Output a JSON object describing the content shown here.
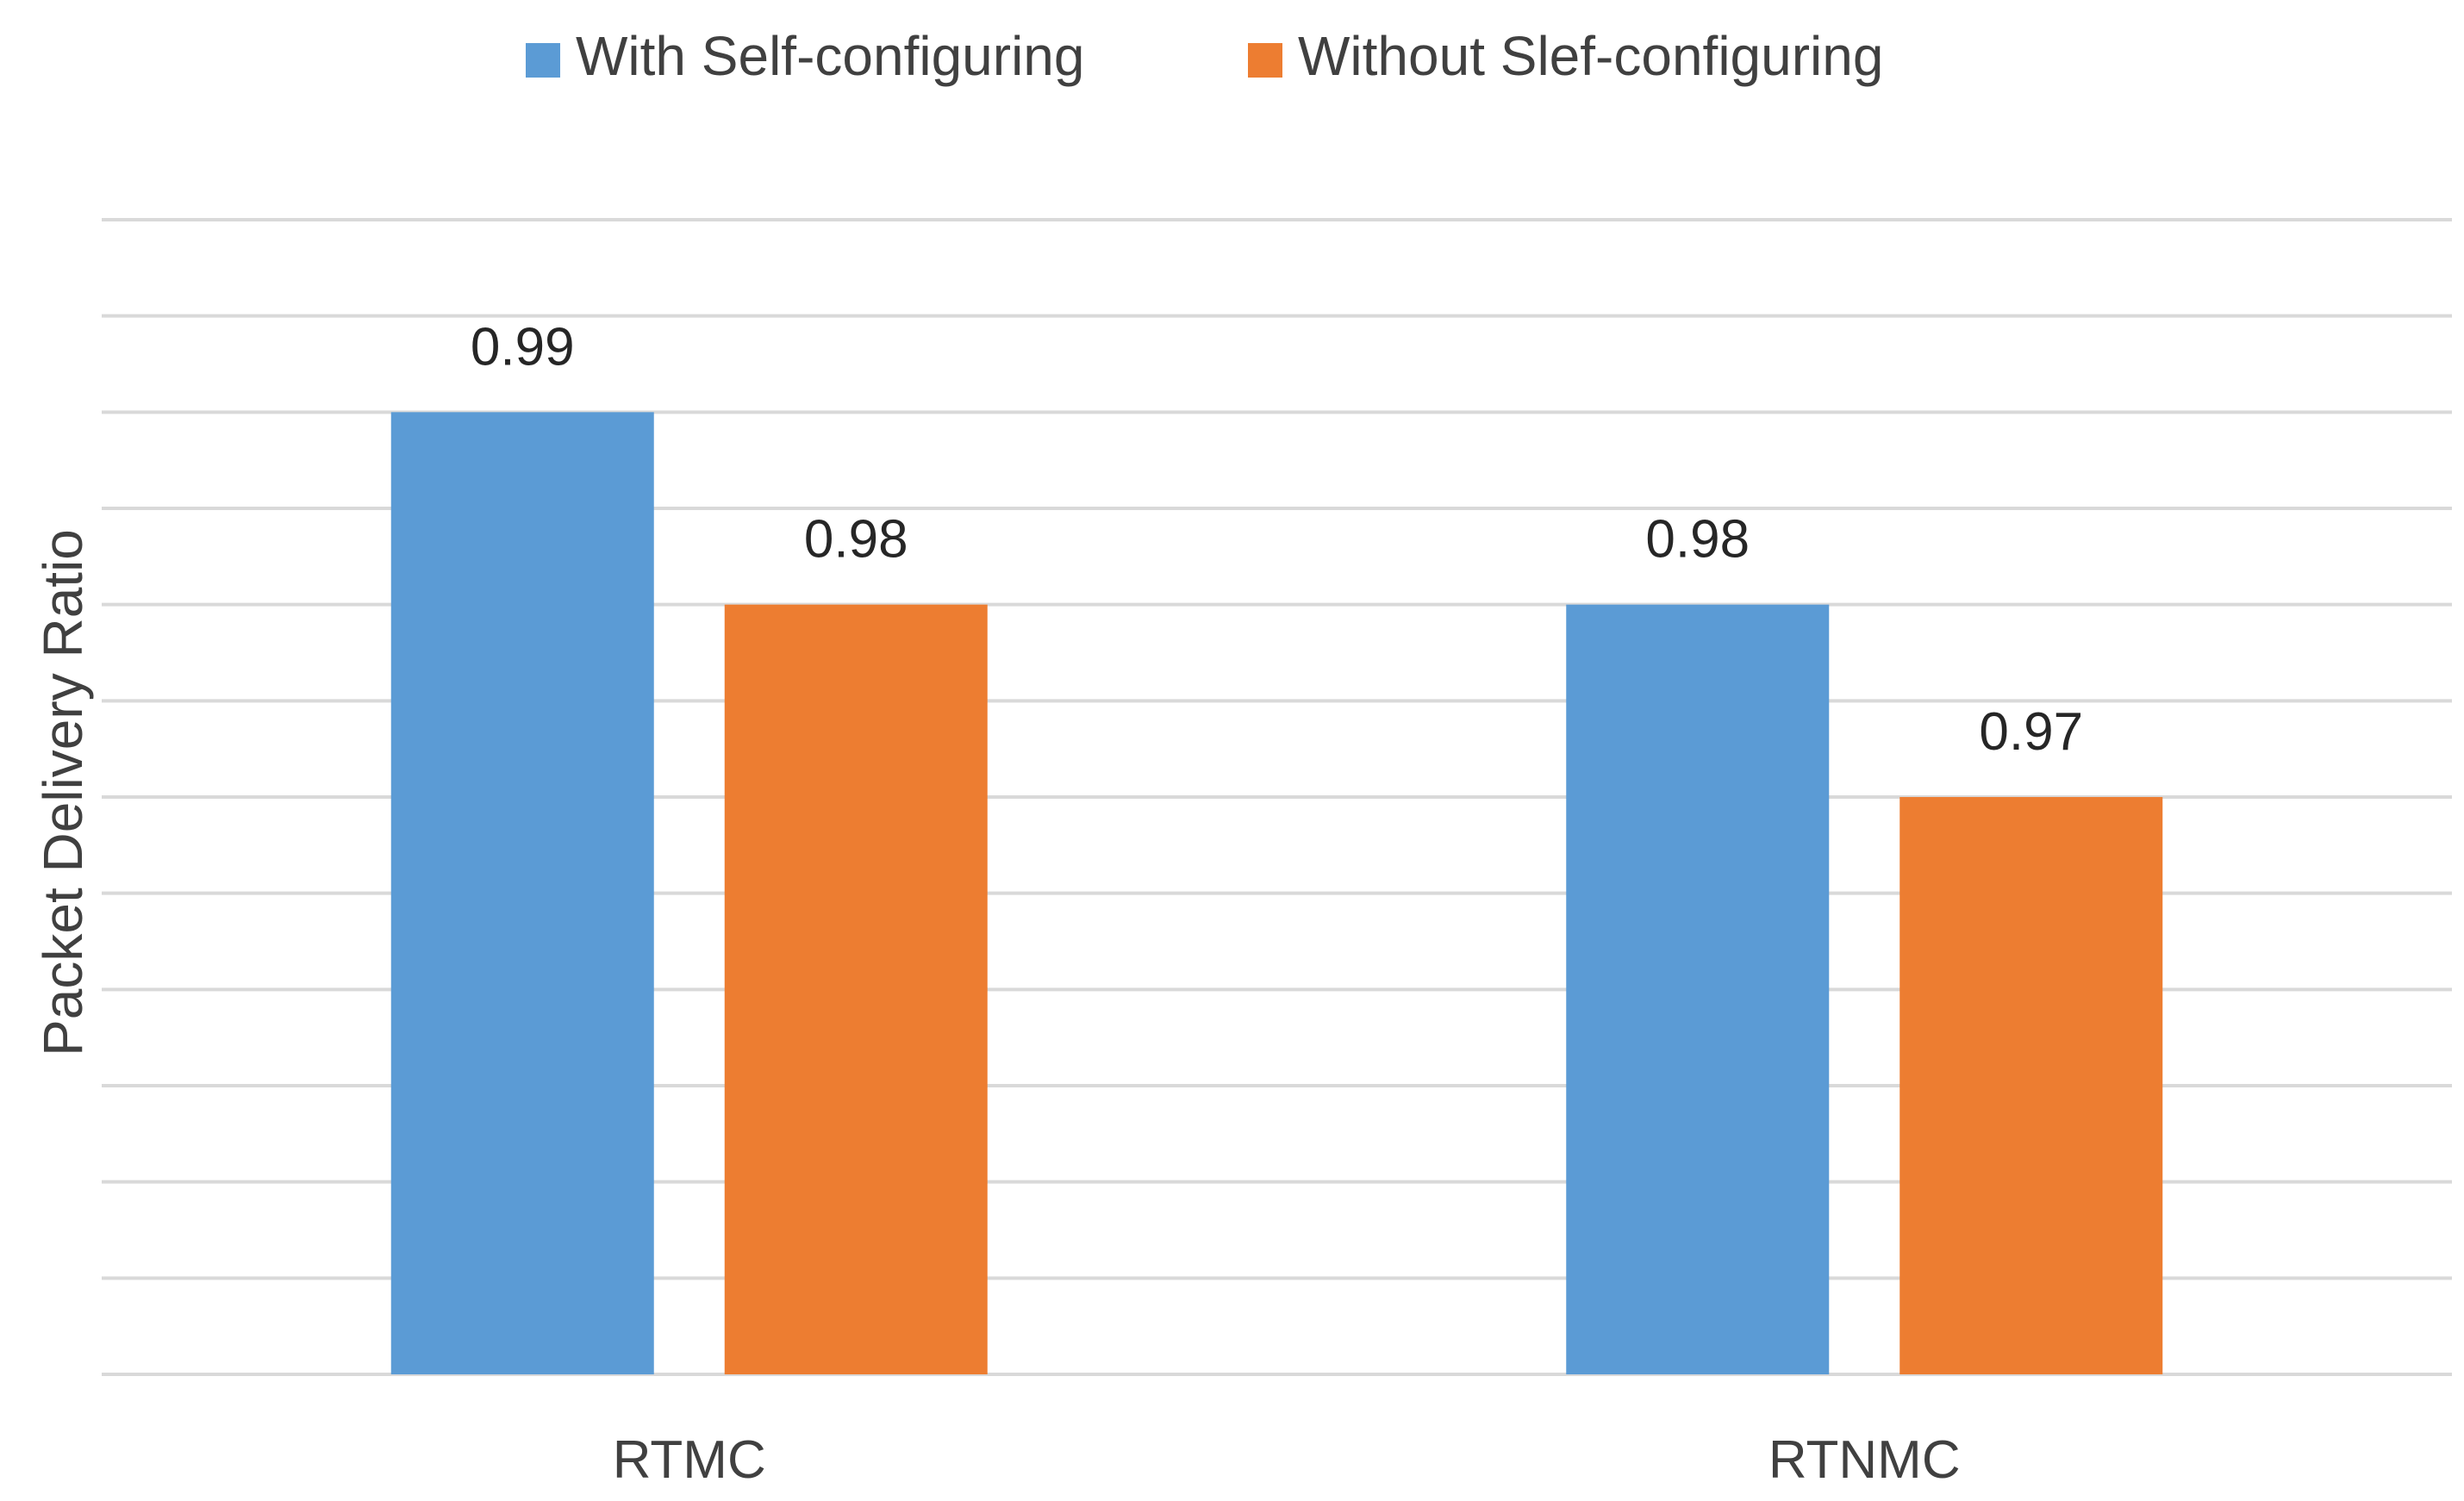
{
  "chart_data": {
    "type": "bar",
    "categories": [
      "RTMC",
      "RTNMC"
    ],
    "series": [
      {
        "name": "With Self-configuring",
        "values": [
          0.99,
          0.98
        ],
        "color": "#5B9BD5"
      },
      {
        "name": "Without Slef-configuring",
        "values": [
          0.98,
          0.97
        ],
        "color": "#ED7D31"
      }
    ],
    "data_labels": [
      [
        "0.99",
        "0.98"
      ],
      [
        "0.98",
        "0.97"
      ]
    ],
    "title": "",
    "xlabel": "",
    "ylabel": "Packet Delivery Ratio",
    "ylim": [
      0.94,
      1.0
    ],
    "y_gridline_step": 0.005,
    "y_tick_labels_visible": false,
    "grid": true,
    "legend_position": "top-center",
    "gridline_color": "#D9D9D9"
  }
}
